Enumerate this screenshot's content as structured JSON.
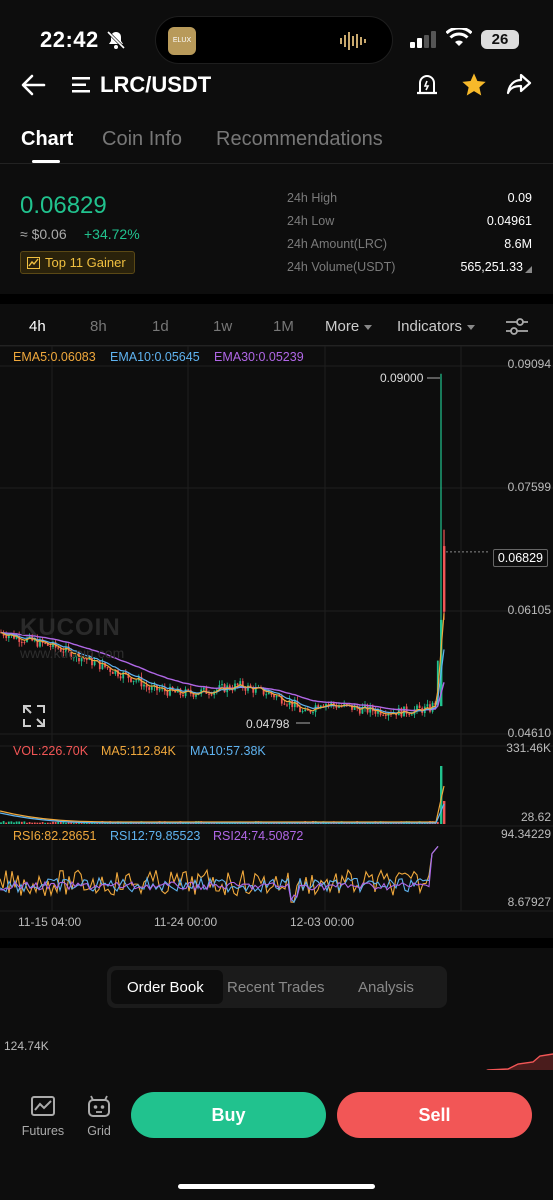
{
  "status_bar": {
    "time": "22:42",
    "battery": "26",
    "island_label": "ELUX"
  },
  "header": {
    "pair": "LRC/USDT"
  },
  "tabs": [
    {
      "label": "Chart",
      "active": true
    },
    {
      "label": "Coin Info",
      "active": false
    },
    {
      "label": "Recommendations",
      "active": false
    }
  ],
  "ticker": {
    "price": "0.06829",
    "fiat": "≈ $0.06",
    "change": "+34.72%",
    "badge": "Top 11 Gainer",
    "stats": [
      {
        "label": "24h High",
        "value": "0.09"
      },
      {
        "label": "24h Low",
        "value": "0.04961"
      },
      {
        "label": "24h Amount(LRC)",
        "value": "8.6M"
      },
      {
        "label": "24h Volume(USDT)",
        "value": "565,251.33"
      }
    ]
  },
  "intervals": {
    "items": [
      "4h",
      "8h",
      "1d",
      "1w",
      "1M"
    ],
    "active": "4h",
    "more": "More",
    "indicators": "Indicators"
  },
  "chart": {
    "ema_legend": {
      "ema5": "EMA5:0.06083",
      "ema10": "EMA10:0.05645",
      "ema30": "EMA30:0.05239"
    },
    "vol_legend": {
      "vol": "VOL:226.70K",
      "ma5": "MA5:112.84K",
      "ma10": "MA10:57.38K"
    },
    "rsi_legend": {
      "rsi6": "RSI6:82.28651",
      "rsi12": "RSI12:79.85523",
      "rsi24": "RSI24:74.50872"
    },
    "price_axis": [
      "0.09094",
      "0.07599",
      "0.06105",
      "0.04610"
    ],
    "current_price": "0.06829",
    "high_marker": "0.09000",
    "low_marker": "0.04798",
    "vol_axis": [
      "331.46K",
      "28.62"
    ],
    "rsi_axis": [
      "94.34229",
      "8.67927"
    ],
    "time_axis": [
      "11-15 04:00",
      "11-24 00:00",
      "12-03 00:00"
    ],
    "watermark": "KUCOIN",
    "watermark_url": "www.kucoin.com",
    "colors": {
      "up": "#21c28e",
      "down": "#f25656",
      "ema5": "#f0a83c",
      "ema10": "#5fb3f0",
      "ema30": "#b067e6"
    }
  },
  "order_panel": {
    "options": [
      "Order Book",
      "Recent Trades",
      "Analysis"
    ],
    "selected": "Order Book",
    "depth_label": "124.74K"
  },
  "footer": {
    "futures": "Futures",
    "grid": "Grid",
    "buy": "Buy",
    "sell": "Sell"
  }
}
